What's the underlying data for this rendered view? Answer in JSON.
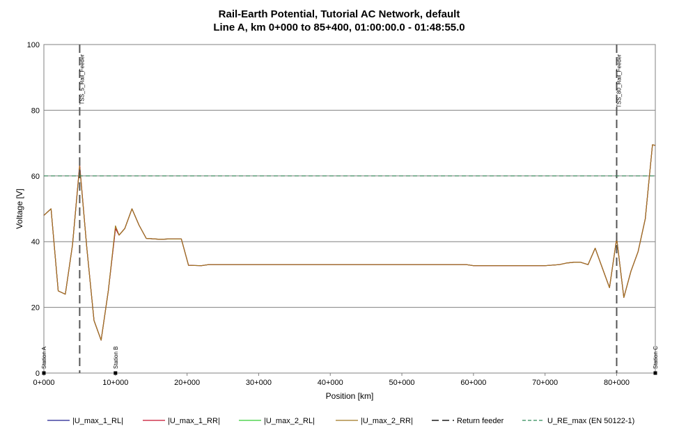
{
  "chart_data": {
    "type": "line",
    "title": "Rail-Earth Potential, Tutorial AC Network, default",
    "subtitle": "Line A, km 0+000 to 85+400, 01:00:00.0 - 01:48:55.0",
    "xlabel": "Position [km]",
    "ylabel": "Voltage [V]",
    "xlim": [
      0,
      85400
    ],
    "ylim": [
      0,
      100
    ],
    "x_ticks": [
      0,
      10000,
      20000,
      30000,
      40000,
      50000,
      60000,
      70000,
      80000
    ],
    "x_tick_labels": [
      "0+000",
      "10+000",
      "20+000",
      "30+000",
      "40+000",
      "50+000",
      "60+000",
      "70+000",
      "80+000"
    ],
    "y_ticks": [
      0,
      20,
      40,
      60,
      80,
      100
    ],
    "y_tick_labels": [
      "0",
      "20",
      "40",
      "60",
      "80",
      "100"
    ],
    "grid": "horizontal",
    "legend_position": "bottom",
    "series": [
      {
        "name": "|U_max_1_RL|",
        "color": "#1f1f8f",
        "style": "solid",
        "x": [
          0,
          1000,
          2000,
          3000,
          4000,
          5000,
          6000,
          7000,
          8000,
          9000,
          10000,
          10500,
          11300,
          12300,
          13300,
          14300,
          16300,
          17300,
          19200,
          20200,
          22000,
          23000,
          30000,
          40000,
          50000,
          59000,
          60000,
          65000,
          70000,
          72000,
          73000,
          74000,
          75000,
          76000,
          77000,
          78000,
          79000,
          80000,
          81000,
          82000,
          83000,
          84000,
          85000,
          85400
        ],
        "values": [
          48,
          50,
          25,
          24,
          39,
          63,
          38,
          16,
          10,
          25,
          44,
          42,
          44,
          50,
          45,
          41,
          40.7,
          40.8,
          40.8,
          32.8,
          32.7,
          33,
          33,
          33,
          33,
          33,
          32.7,
          32.7,
          32.7,
          33,
          33.5,
          33.7,
          33.7,
          33,
          38,
          32,
          26,
          41,
          23,
          31,
          37,
          47,
          69.5,
          69.3
        ]
      },
      {
        "name": "|U_max_1_RR|",
        "color": "#c8102e",
        "style": "solid",
        "x": [
          0,
          1000,
          2000,
          3000,
          4000,
          5000,
          6000,
          7000,
          8000,
          9000,
          10000,
          10500,
          11300,
          12300,
          13300,
          14300,
          16300,
          17300,
          19200,
          20200,
          22000,
          23000,
          30000,
          40000,
          50000,
          59000,
          60000,
          65000,
          70000,
          72000,
          73000,
          74000,
          75000,
          76000,
          77000,
          78000,
          79000,
          80000,
          81000,
          82000,
          83000,
          84000,
          85000,
          85400
        ],
        "values": [
          48,
          50,
          25,
          24,
          39,
          63.5,
          38,
          16,
          10,
          25,
          44,
          42,
          44,
          50,
          45,
          41,
          40.7,
          40.8,
          40.8,
          32.8,
          32.7,
          33,
          33,
          33,
          33,
          33,
          32.7,
          32.7,
          32.7,
          33,
          33.5,
          33.7,
          33.7,
          33,
          38,
          32,
          26,
          41,
          23,
          31,
          37,
          47,
          69.5,
          69.3
        ]
      },
      {
        "name": "|U_max_2_RL|",
        "color": "#33cc33",
        "style": "solid",
        "x": [],
        "values": []
      },
      {
        "name": "|U_max_2_RR|",
        "color": "#a07820",
        "style": "solid",
        "x": [
          0,
          1000,
          2000,
          3000,
          4000,
          5000,
          6000,
          7000,
          8000,
          9000,
          10000,
          10500,
          11300,
          12300,
          13300,
          14300,
          16300,
          17300,
          19200,
          20200,
          22000,
          23000,
          30000,
          40000,
          50000,
          59000,
          60000,
          65000,
          70000,
          72000,
          73000,
          74000,
          75000,
          76000,
          77000,
          78000,
          79000,
          80000,
          81000,
          82000,
          83000,
          84000,
          85000,
          85400
        ],
        "values": [
          48,
          50,
          25,
          24,
          39,
          63,
          38,
          16,
          10,
          25,
          44.8,
          42,
          44,
          50,
          45,
          41,
          40.7,
          40.8,
          40.8,
          32.8,
          32.7,
          33,
          33,
          33,
          33,
          33,
          32.7,
          32.7,
          32.7,
          33,
          33.5,
          33.7,
          33.7,
          33,
          38,
          32,
          26,
          41,
          23,
          31,
          37,
          47,
          69.5,
          69.3
        ]
      },
      {
        "name": "Return feeder",
        "color": "#555555",
        "style": "dashed",
        "x_positions": [
          5000,
          80000
        ]
      },
      {
        "name": "U_RE_max (EN 50122-1)",
        "color": "#2e8b57",
        "style": "dashed",
        "y_value": 60
      }
    ],
    "vertical_markers": [
      {
        "x": 5000,
        "label": "TSS_5_Rail_Feeder"
      },
      {
        "x": 80000,
        "label": "TSS_80_Rail_Feeder"
      }
    ],
    "stations": [
      {
        "x": 0,
        "label": "Station A"
      },
      {
        "x": 10000,
        "label": "Station B"
      },
      {
        "x": 85400,
        "label": "Station C"
      }
    ]
  }
}
